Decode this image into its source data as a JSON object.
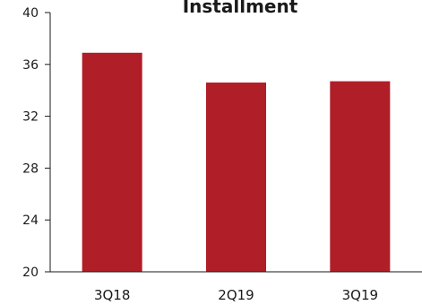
{
  "chart_data": {
    "type": "bar",
    "title": "Installment",
    "xlabel": "",
    "ylabel": "",
    "categories": [
      "3Q18",
      "2Q19",
      "3Q19"
    ],
    "values": [
      36.9,
      34.6,
      34.7
    ],
    "ylim": [
      20,
      40
    ],
    "yticks": [
      "20",
      "24",
      "28",
      "32",
      "36",
      "40"
    ],
    "grid": false,
    "legend": "none",
    "bar_color": "#b01e28",
    "axis_color": "#1a1a1a"
  }
}
